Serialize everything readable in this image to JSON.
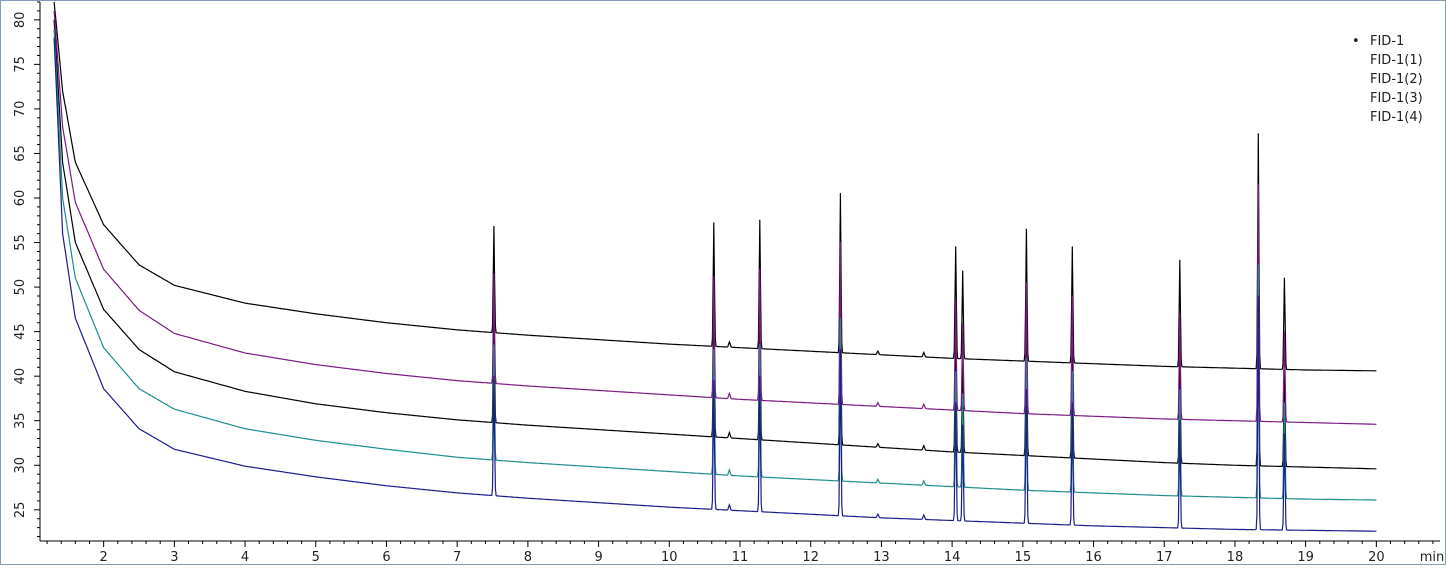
{
  "chart_data": {
    "type": "line",
    "title": "",
    "xlabel": "",
    "ylabel": "",
    "x_unit": "min",
    "xlim": [
      1.1,
      20.9
    ],
    "ylim": [
      21.5,
      82
    ],
    "x_ticks": [
      2,
      3,
      4,
      5,
      6,
      7,
      8,
      9,
      10,
      11,
      12,
      13,
      14,
      15,
      16,
      17,
      18,
      19,
      20
    ],
    "y_ticks": [
      25,
      30,
      35,
      40,
      45,
      50,
      55,
      60,
      65,
      70,
      75,
      80
    ],
    "grid": false,
    "legend_position": "top-right",
    "series": [
      {
        "name": "FID-1",
        "marker": "•",
        "color": "#000000",
        "baseline": [
          [
            1.3,
            82
          ],
          [
            1.42,
            72
          ],
          [
            1.6,
            64
          ],
          [
            2.0,
            57
          ],
          [
            2.5,
            52.5
          ],
          [
            3,
            50.2
          ],
          [
            4,
            48.2
          ],
          [
            5,
            47
          ],
          [
            6,
            46
          ],
          [
            7,
            45.2
          ],
          [
            8,
            44.6
          ],
          [
            9,
            44.1
          ],
          [
            10,
            43.6
          ],
          [
            11,
            43.2
          ],
          [
            12,
            42.8
          ],
          [
            13,
            42.4
          ],
          [
            14,
            42.0
          ],
          [
            15,
            41.7
          ],
          [
            16,
            41.4
          ],
          [
            17,
            41.1
          ],
          [
            18,
            40.9
          ],
          [
            19,
            40.7
          ],
          [
            20,
            40.6
          ]
        ],
        "peaks": [
          [
            7.52,
            56.8
          ],
          [
            10.63,
            57.2
          ],
          [
            11.28,
            57.5
          ],
          [
            12.42,
            60.5
          ],
          [
            14.05,
            54.5
          ],
          [
            14.15,
            51.8
          ],
          [
            15.05,
            56.5
          ],
          [
            15.7,
            54.5
          ],
          [
            17.22,
            53
          ],
          [
            18.33,
            67.2
          ],
          [
            18.7,
            51
          ]
        ]
      },
      {
        "name": "FID-1(1)",
        "color": "#000000",
        "baseline": [
          [
            1.3,
            80
          ],
          [
            1.42,
            64
          ],
          [
            1.6,
            55
          ],
          [
            2.0,
            47.5
          ],
          [
            2.5,
            43
          ],
          [
            3,
            40.5
          ],
          [
            4,
            38.3
          ],
          [
            5,
            36.9
          ],
          [
            6,
            35.9
          ],
          [
            7,
            35.1
          ],
          [
            8,
            34.5
          ],
          [
            9,
            34
          ],
          [
            10,
            33.5
          ],
          [
            11,
            33
          ],
          [
            12,
            32.5
          ],
          [
            13,
            32
          ],
          [
            14,
            31.5
          ],
          [
            15,
            31.1
          ],
          [
            16,
            30.7
          ],
          [
            17,
            30.3
          ],
          [
            18,
            30
          ],
          [
            19,
            29.8
          ],
          [
            20,
            29.6
          ]
        ],
        "peaks": [
          [
            7.52,
            47
          ],
          [
            10.63,
            46.5
          ],
          [
            11.28,
            47
          ],
          [
            12.42,
            50.5
          ],
          [
            14.05,
            44
          ],
          [
            14.15,
            41.5
          ],
          [
            15.05,
            45.5
          ],
          [
            15.7,
            44
          ],
          [
            17.22,
            42
          ],
          [
            18.33,
            56.5
          ],
          [
            18.7,
            40.5
          ]
        ]
      },
      {
        "name": "FID-1(2)",
        "color": "#7b1a84",
        "baseline": [
          [
            1.3,
            81
          ],
          [
            1.42,
            68
          ],
          [
            1.6,
            59.5
          ],
          [
            2.0,
            52
          ],
          [
            2.5,
            47.4
          ],
          [
            3,
            44.8
          ],
          [
            4,
            42.6
          ],
          [
            5,
            41.3
          ],
          [
            6,
            40.3
          ],
          [
            7,
            39.5
          ],
          [
            8,
            38.9
          ],
          [
            9,
            38.4
          ],
          [
            10,
            37.9
          ],
          [
            11,
            37.4
          ],
          [
            12,
            37
          ],
          [
            13,
            36.6
          ],
          [
            14,
            36.2
          ],
          [
            15,
            35.8
          ],
          [
            16,
            35.5
          ],
          [
            17,
            35.2
          ],
          [
            18,
            35
          ],
          [
            19,
            34.8
          ],
          [
            20,
            34.6
          ]
        ],
        "peaks": [
          [
            7.52,
            51.5
          ],
          [
            10.63,
            51.2
          ],
          [
            11.28,
            52
          ],
          [
            12.42,
            55
          ],
          [
            14.05,
            48.5
          ],
          [
            14.15,
            46
          ],
          [
            15.05,
            50.5
          ],
          [
            15.7,
            49
          ],
          [
            17.22,
            47
          ],
          [
            18.33,
            61.5
          ],
          [
            18.7,
            45
          ]
        ]
      },
      {
        "name": "FID-1(3)",
        "color": "#1e8c8c",
        "baseline": [
          [
            1.3,
            79
          ],
          [
            1.42,
            60
          ],
          [
            1.6,
            51
          ],
          [
            2.0,
            43.2
          ],
          [
            2.5,
            38.6
          ],
          [
            3,
            36.3
          ],
          [
            4,
            34.1
          ],
          [
            5,
            32.8
          ],
          [
            6,
            31.8
          ],
          [
            7,
            30.9
          ],
          [
            8,
            30.3
          ],
          [
            9,
            29.8
          ],
          [
            10,
            29.3
          ],
          [
            11,
            28.8
          ],
          [
            12,
            28.4
          ],
          [
            13,
            28
          ],
          [
            14,
            27.6
          ],
          [
            15,
            27.2
          ],
          [
            16,
            26.9
          ],
          [
            17,
            26.6
          ],
          [
            18,
            26.4
          ],
          [
            19,
            26.2
          ],
          [
            20,
            26.1
          ]
        ],
        "peaks": [
          [
            7.52,
            43.5
          ],
          [
            10.63,
            43
          ],
          [
            11.28,
            43.5
          ],
          [
            12.42,
            46.5
          ],
          [
            14.05,
            40.5
          ],
          [
            14.15,
            38
          ],
          [
            15.05,
            42
          ],
          [
            15.7,
            40.5
          ],
          [
            17.22,
            38.5
          ],
          [
            18.33,
            52.5
          ],
          [
            18.7,
            37
          ]
        ]
      },
      {
        "name": "FID-1(4)",
        "color": "#1c1c8c",
        "baseline": [
          [
            1.3,
            78
          ],
          [
            1.42,
            56
          ],
          [
            1.6,
            46.5
          ],
          [
            2.0,
            38.6
          ],
          [
            2.5,
            34.1
          ],
          [
            3,
            31.8
          ],
          [
            4,
            29.9
          ],
          [
            5,
            28.7
          ],
          [
            6,
            27.7
          ],
          [
            7,
            26.9
          ],
          [
            8,
            26.3
          ],
          [
            9,
            25.8
          ],
          [
            10,
            25.3
          ],
          [
            11,
            24.9
          ],
          [
            12,
            24.5
          ],
          [
            13,
            24.1
          ],
          [
            14,
            23.8
          ],
          [
            15,
            23.5
          ],
          [
            16,
            23.2
          ],
          [
            17,
            23
          ],
          [
            18,
            22.8
          ],
          [
            19,
            22.7
          ],
          [
            20,
            22.6
          ]
        ],
        "peaks": [
          [
            7.52,
            40
          ],
          [
            10.63,
            39.5
          ],
          [
            11.28,
            40
          ],
          [
            12.42,
            43
          ],
          [
            14.05,
            37
          ],
          [
            14.15,
            34.5
          ],
          [
            15.05,
            38.5
          ],
          [
            15.7,
            37
          ],
          [
            17.22,
            35
          ],
          [
            18.33,
            49
          ],
          [
            18.7,
            33.5
          ]
        ]
      }
    ]
  }
}
